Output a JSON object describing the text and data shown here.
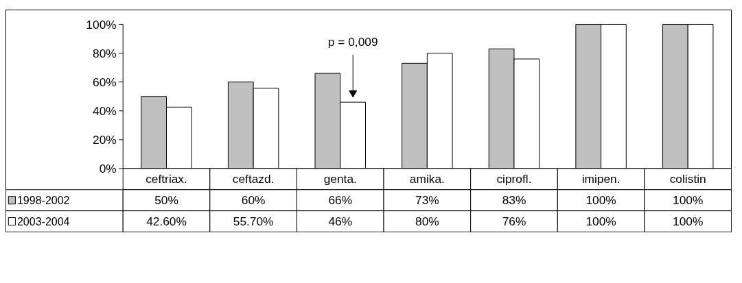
{
  "chart_data": {
    "type": "bar",
    "categories": [
      "ceftriax.",
      "ceftazd.",
      "genta.",
      "amika.",
      "ciprofl.",
      "imipen.",
      "colistin"
    ],
    "series": [
      {
        "name": "1998-2002",
        "color": "#c0c0c0",
        "values": [
          50,
          60,
          66,
          73,
          83,
          100,
          100
        ],
        "value_labels": [
          "50%",
          "60%",
          "66%",
          "73%",
          "83%",
          "100%",
          "100%"
        ]
      },
      {
        "name": "2003-2004",
        "color": "#ffffff",
        "values": [
          42.6,
          55.7,
          46,
          80,
          76,
          100,
          100
        ],
        "value_labels": [
          "42.60%",
          "55.70%",
          "46%",
          "80%",
          "76%",
          "100%",
          "100%"
        ]
      }
    ],
    "ylim": [
      0,
      100
    ],
    "yticks": [
      {
        "value": 0,
        "label": "0%"
      },
      {
        "value": 20,
        "label": "20%"
      },
      {
        "value": 40,
        "label": "40%"
      },
      {
        "value": 60,
        "label": "60%"
      },
      {
        "value": 80,
        "label": "80%"
      },
      {
        "value": 100,
        "label": "100%"
      }
    ],
    "annotations": [
      "p = 0,009"
    ],
    "grid": false,
    "legend": "bottom"
  }
}
